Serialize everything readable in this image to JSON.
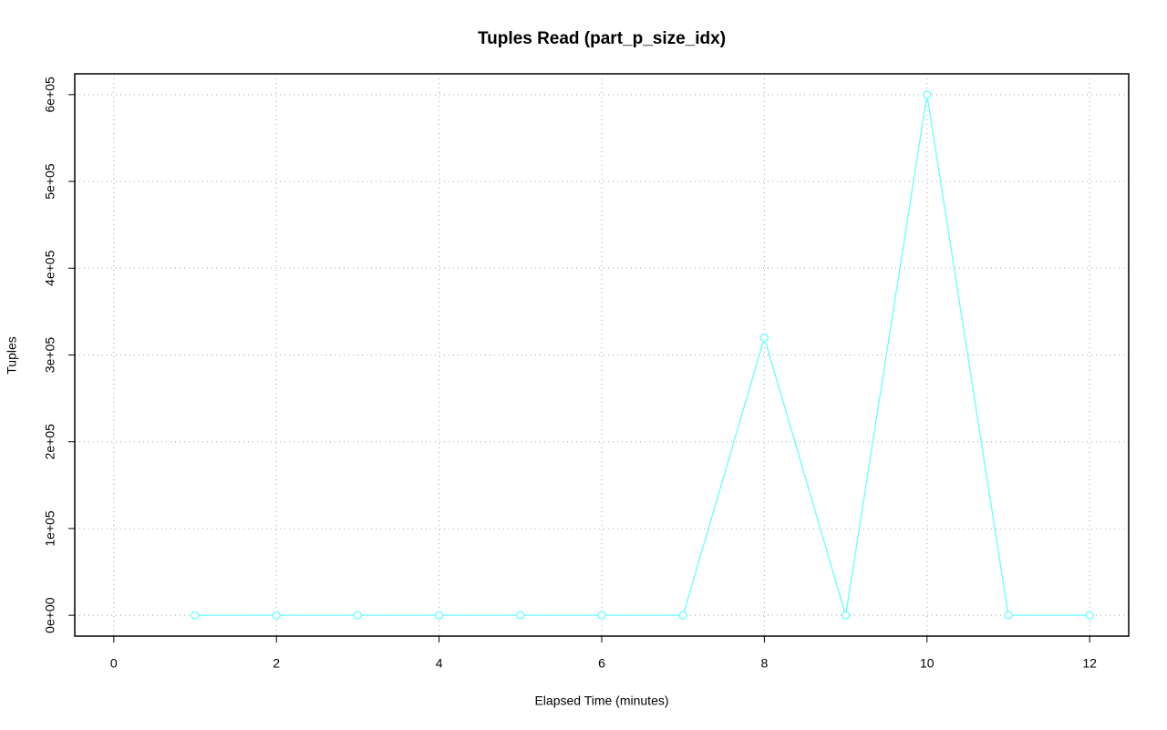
{
  "chart_data": {
    "type": "line",
    "title": "Tuples Read (part_p_size_idx)",
    "x_label": "Elapsed Time (minutes)",
    "y_label": "Tuples",
    "x": [
      1,
      2,
      3,
      4,
      5,
      6,
      7,
      8,
      9,
      10,
      11,
      12
    ],
    "series": [
      {
        "color": "#66ffff",
        "values": [
          0,
          0,
          0,
          0,
          0,
          0,
          0,
          320000,
          0,
          600000,
          0,
          0
        ]
      }
    ],
    "xlim": [
      -0.48,
      12.48
    ],
    "ylim": [
      -24000,
      624000
    ],
    "xticks": [
      0,
      2,
      4,
      6,
      8,
      10,
      12
    ],
    "yticks": [
      {
        "value": 0,
        "label": "0e+00"
      },
      {
        "value": 100000,
        "label": "1e+05"
      },
      {
        "value": 200000,
        "label": "2e+05"
      },
      {
        "value": 300000,
        "label": "3e+05"
      },
      {
        "value": 400000,
        "label": "4e+05"
      },
      {
        "value": 500000,
        "label": "5e+05"
      },
      {
        "value": 600000,
        "label": "6e+05"
      }
    ],
    "grid": true
  }
}
